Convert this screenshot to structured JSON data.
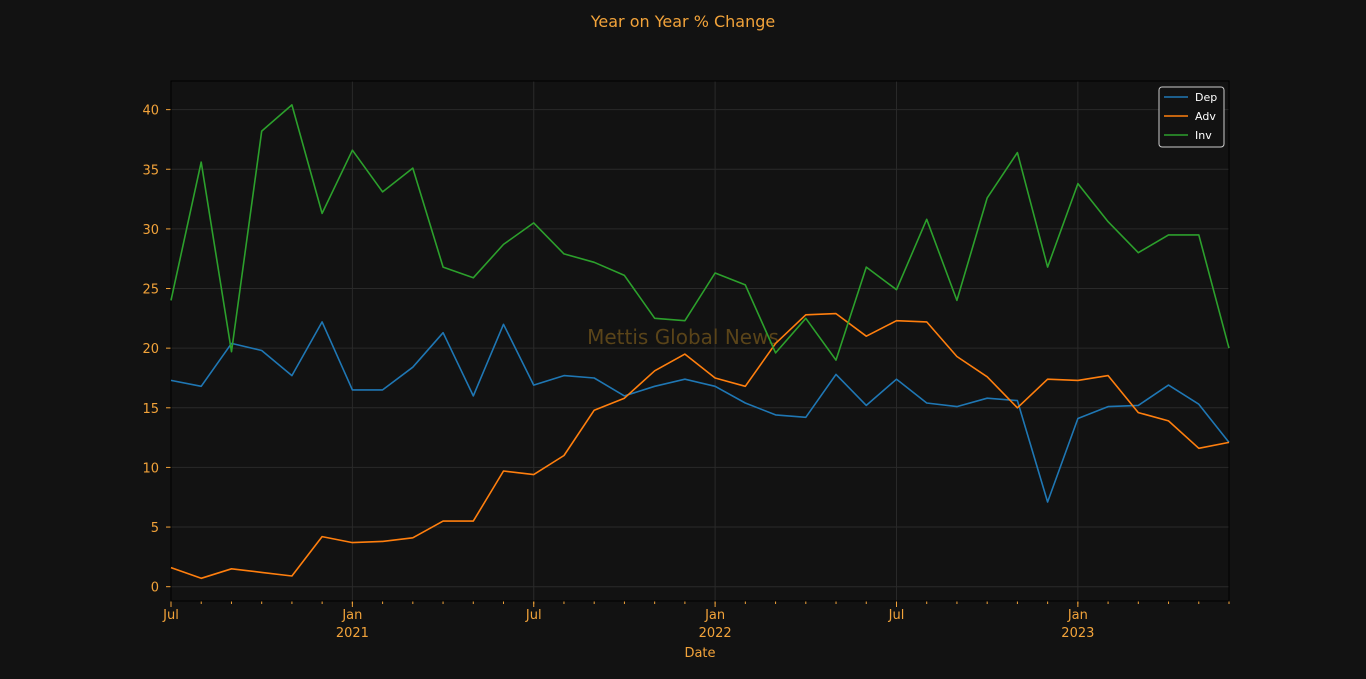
{
  "chart_data": {
    "type": "line",
    "title": "Year on Year % Change",
    "xlabel": "Date",
    "ylabel": "",
    "watermark": "Mettis Global News",
    "x": [
      "2020-07",
      "2020-08",
      "2020-09",
      "2020-10",
      "2020-11",
      "2020-12",
      "2021-01",
      "2021-02",
      "2021-03",
      "2021-04",
      "2021-05",
      "2021-06",
      "2021-07",
      "2021-08",
      "2021-09",
      "2021-10",
      "2021-11",
      "2021-12",
      "2022-01",
      "2022-02",
      "2022-03",
      "2022-04",
      "2022-05",
      "2022-06",
      "2022-07",
      "2022-08",
      "2022-09",
      "2022-10",
      "2022-11",
      "2022-12",
      "2023-01",
      "2023-02",
      "2023-03",
      "2023-04",
      "2023-05",
      "2023-06"
    ],
    "xlim": [
      "2020-07",
      "2023-06"
    ],
    "ylim": [
      -1.2,
      42.4
    ],
    "yticks": [
      0,
      5,
      10,
      15,
      20,
      25,
      30,
      35,
      40
    ],
    "xticks_major": [
      {
        "date": "2020-07",
        "label": "Jul",
        "year": ""
      },
      {
        "date": "2021-01",
        "label": "Jan",
        "year": "2021"
      },
      {
        "date": "2021-07",
        "label": "Jul",
        "year": ""
      },
      {
        "date": "2022-01",
        "label": "Jan",
        "year": "2022"
      },
      {
        "date": "2022-07",
        "label": "Jul",
        "year": ""
      },
      {
        "date": "2023-01",
        "label": "Jan",
        "year": "2023"
      }
    ],
    "grid": true,
    "legend": "top-right",
    "colors": {
      "background": "#121212",
      "axes_text": "#f2a33a",
      "grid": "#2a2a2a",
      "legend_text": "#ffffff",
      "watermark": "#5a4419"
    },
    "series": [
      {
        "name": "Dep",
        "color": "#1f77b4",
        "values": [
          17.3,
          16.8,
          20.4,
          19.8,
          17.7,
          22.2,
          16.5,
          16.5,
          18.4,
          21.3,
          16.0,
          22.0,
          16.9,
          17.7,
          17.5,
          16.0,
          16.8,
          17.4,
          16.8,
          15.4,
          14.4,
          14.2,
          17.8,
          15.2,
          17.4,
          15.4,
          15.1,
          15.8,
          15.6,
          7.1,
          14.1,
          15.1,
          15.2,
          16.9,
          15.3,
          12.1
        ]
      },
      {
        "name": "Adv",
        "color": "#ff7f0e",
        "values": [
          1.6,
          0.7,
          1.5,
          1.2,
          0.9,
          4.2,
          3.7,
          3.8,
          4.1,
          5.5,
          5.5,
          9.7,
          9.4,
          11.0,
          14.8,
          15.8,
          18.1,
          19.5,
          17.5,
          16.8,
          20.4,
          22.8,
          22.9,
          21.0,
          22.3,
          22.2,
          19.3,
          17.6,
          15.0,
          17.4,
          17.3,
          17.7,
          14.6,
          13.9,
          11.6,
          12.1
        ]
      },
      {
        "name": "Inv",
        "color": "#2ca02c",
        "values": [
          24.0,
          35.6,
          19.7,
          38.2,
          40.4,
          31.3,
          36.6,
          33.1,
          35.1,
          26.8,
          25.9,
          28.7,
          30.5,
          27.9,
          27.2,
          26.1,
          22.5,
          22.3,
          26.3,
          25.3,
          19.6,
          22.5,
          19.0,
          26.8,
          24.9,
          30.8,
          24.0,
          32.6,
          36.4,
          26.8,
          33.8,
          30.6,
          28.0,
          29.5,
          29.5,
          20.0
        ]
      }
    ]
  }
}
